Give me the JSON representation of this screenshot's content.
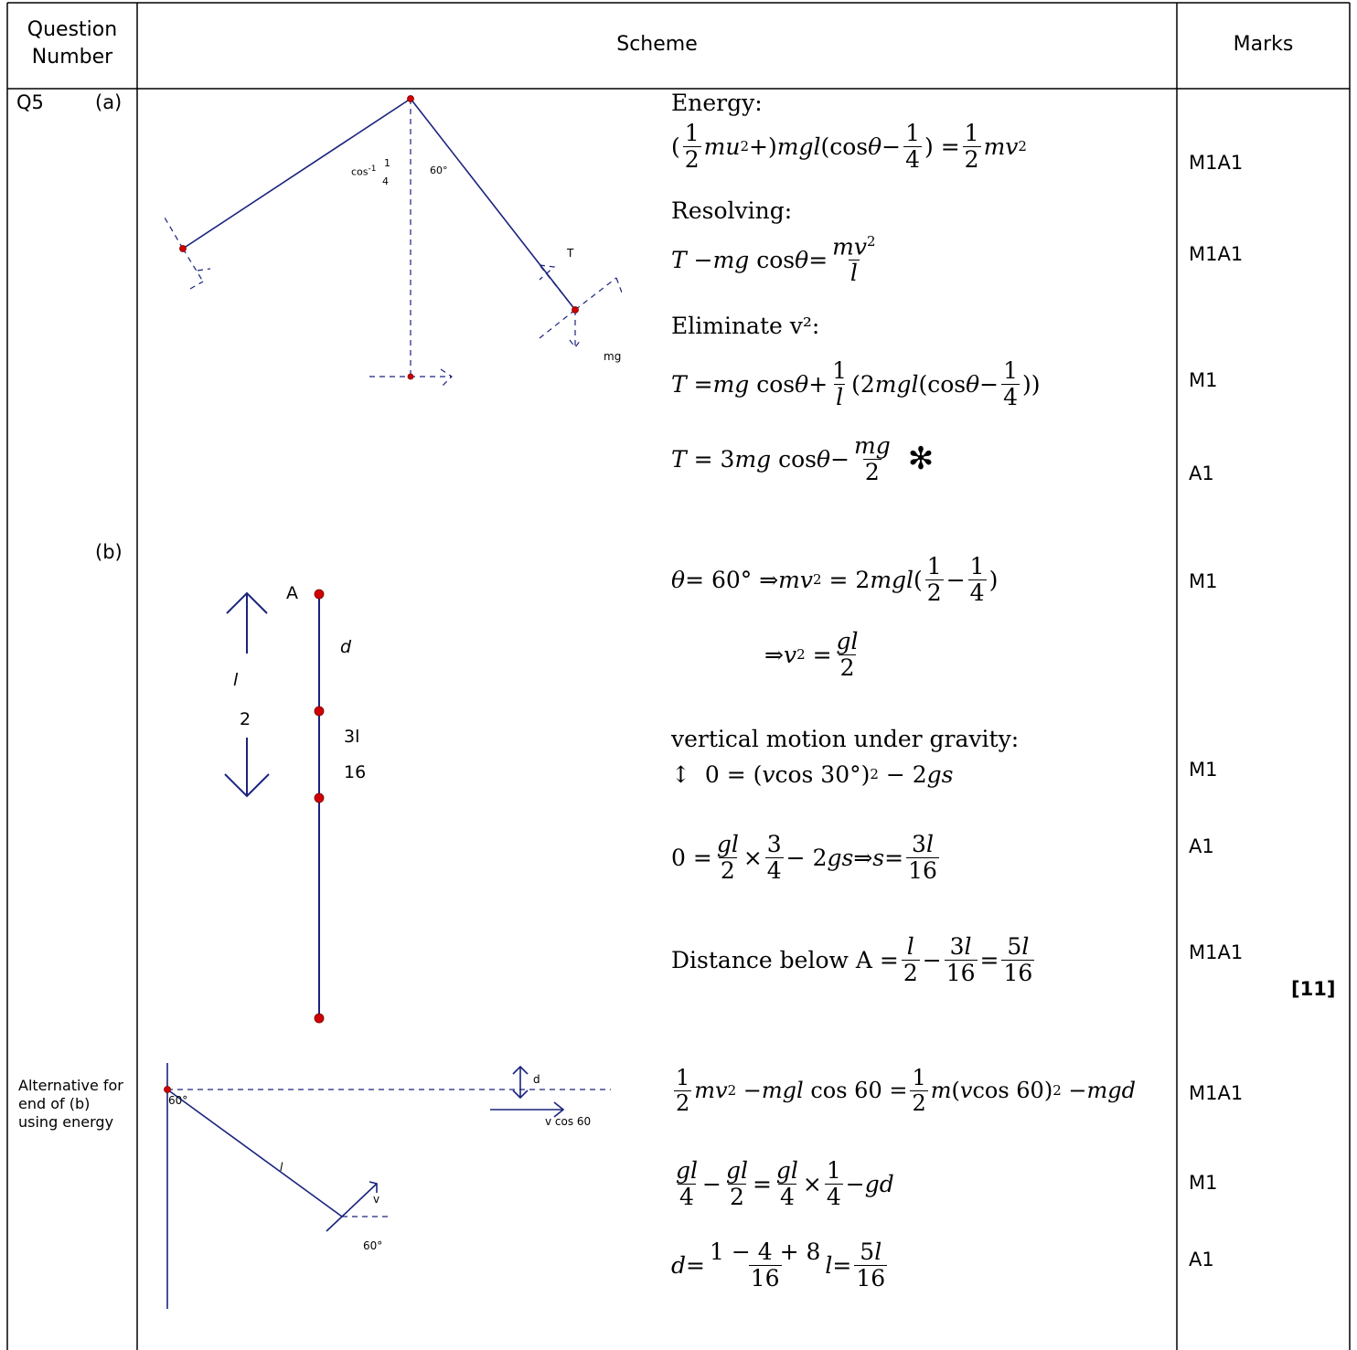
{
  "header": {
    "question_number": "Question Number",
    "scheme": "Scheme",
    "marks": "Marks"
  },
  "question": {
    "number": "Q5",
    "part_a": "(a)",
    "part_b": "(b)",
    "alternative_note": "Alternative for end of (b) using energy"
  },
  "part_a": {
    "energy_label": "Energy:",
    "resolving_label": "Resolving:",
    "eliminate_label": "Eliminate v²:",
    "marks": [
      "M1A1",
      "M1A1",
      "M1",
      "A1"
    ],
    "diagram": {
      "angle_label": "cos⁻¹ 1/4",
      "angle_num": "1",
      "angle_den": "4",
      "angle_prefix": "cos",
      "angle_sup": "-1",
      "angle_60": "60°",
      "tension": "T",
      "weight": "mg"
    }
  },
  "part_b": {
    "vertical_label": "vertical motion under gravity:",
    "distance_label": "Distance below A",
    "marks": [
      "M1",
      "M1",
      "A1",
      "M1A1"
    ],
    "total": "[11]",
    "diagram": {
      "point": "A",
      "d": "d",
      "l": "l",
      "two": "2",
      "three_l": "3l",
      "sixteen": "16"
    }
  },
  "alternative": {
    "marks": [
      "M1A1",
      "M1",
      "A1"
    ],
    "diagram": {
      "angle_60_top": "60°",
      "l": "l",
      "d": "d",
      "vcos": "v cos 60",
      "v": "v",
      "angle_60_bottom": "60°"
    }
  }
}
